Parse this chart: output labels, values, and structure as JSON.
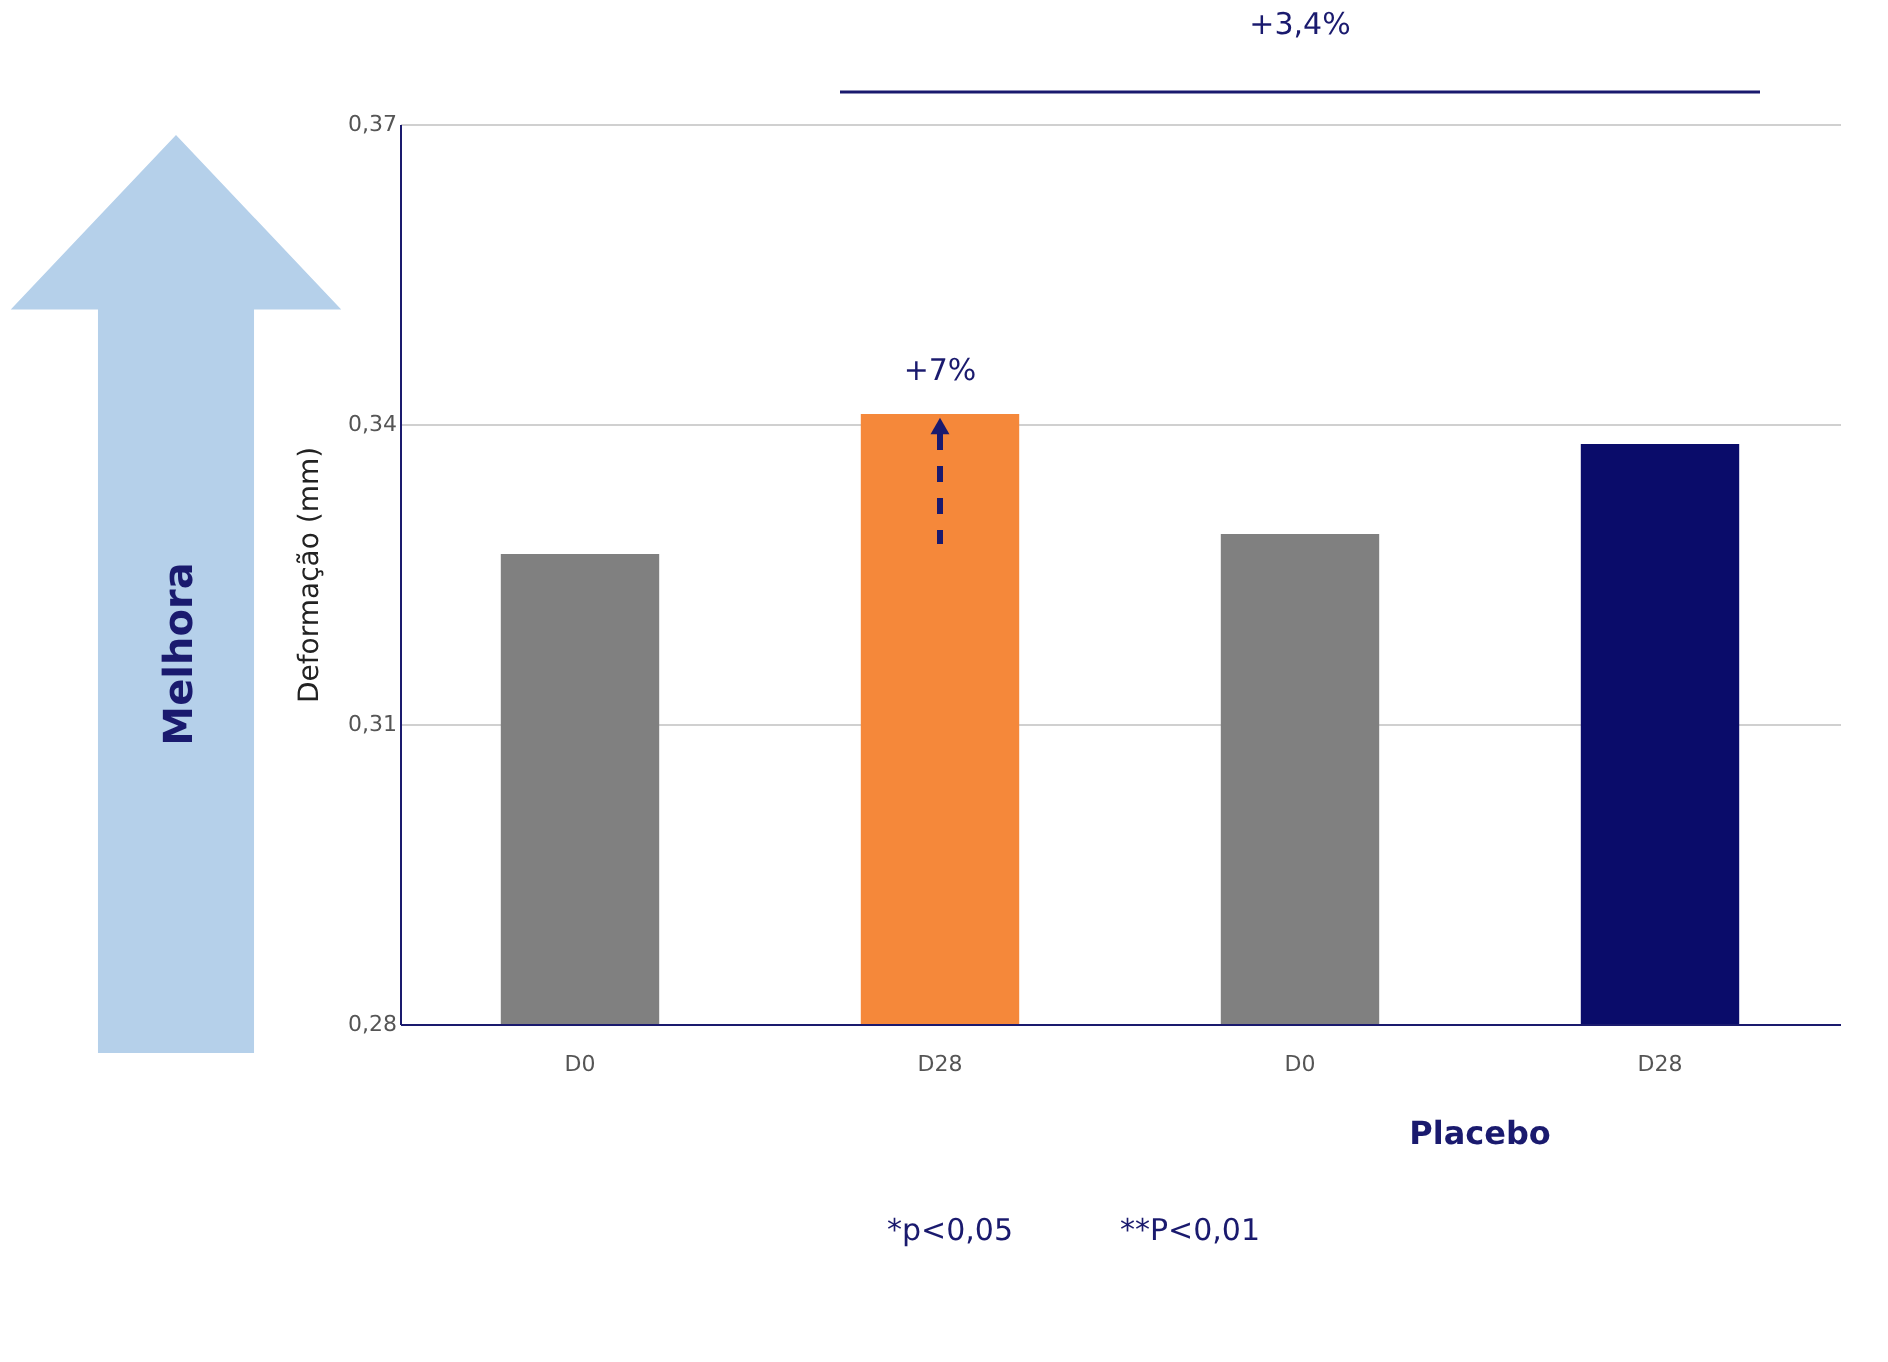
{
  "chart_data": {
    "type": "bar",
    "categories": [
      "D0",
      "D28",
      "D0",
      "D28"
    ],
    "values": [
      0.327,
      0.341,
      0.329,
      0.338
    ],
    "colors": [
      "#808080",
      "#f5883a",
      "#808080",
      "#0a0c6a"
    ],
    "ylabel": "Deformação (mm)",
    "ylim": [
      0.28,
      0.37
    ],
    "yticks": [
      {
        "value": 0.28,
        "label": "0,28"
      },
      {
        "value": 0.31,
        "label": "0,31"
      },
      {
        "value": 0.34,
        "label": "0,34"
      },
      {
        "value": 0.37,
        "label": "0,37"
      }
    ],
    "grid": "y",
    "legend": false,
    "annotations": [
      "+7%",
      "+3,4%",
      "Placebo",
      "*p<0,05",
      "**P<0,01",
      "Melhora"
    ]
  }
}
